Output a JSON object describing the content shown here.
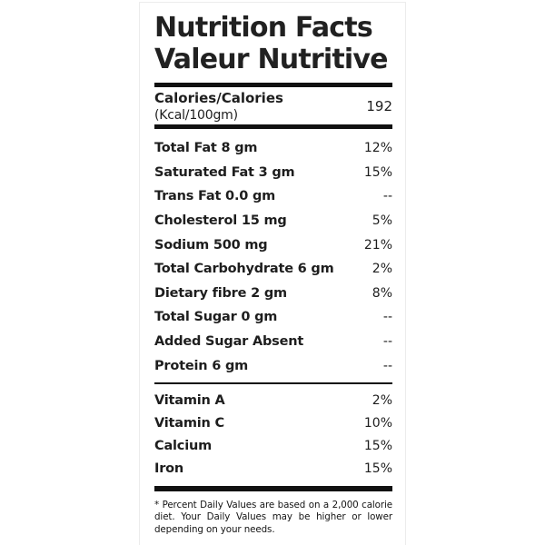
{
  "header": {
    "title_line1": "Nutrition Facts",
    "title_line2": "Valeur Nutritive"
  },
  "calories": {
    "label": "Calories/Calories",
    "unit": "(Kcal/100gm)",
    "value": "192"
  },
  "daily_value_rows": [
    {
      "label": "Total Fat 8 gm",
      "value": "12%"
    },
    {
      "label": "Saturated Fat 3 gm",
      "value": "15%"
    },
    {
      "label": "Trans Fat 0.0 gm",
      "value": "--"
    },
    {
      "label": "Cholesterol 15 mg",
      "value": "5%"
    },
    {
      "label": "Sodium 500 mg",
      "value": "21%"
    },
    {
      "label": "Total Carbohydrate 6 gm",
      "value": "2%"
    },
    {
      "label": "Dietary fibre 2 gm",
      "value": "8%"
    },
    {
      "label": "Total Sugar 0 gm",
      "value": "--"
    },
    {
      "label": "Added Sugar Absent",
      "value": "--"
    },
    {
      "label": "Protein 6 gm",
      "value": "--"
    }
  ],
  "vitamin_rows": [
    {
      "label": "Vitamin A",
      "value": "2%"
    },
    {
      "label": "Vitamin C",
      "value": "10%"
    },
    {
      "label": "Calcium",
      "value": "15%"
    },
    {
      "label": "Iron",
      "value": "15%"
    }
  ],
  "footnote": "* Percent Daily Values are based on a 2,000 calorie diet. Your Daily Values may be higher or lower depending on your needs.",
  "colors": {
    "text": "#1e1e1e",
    "bar": "#111111",
    "card_border": "#ececec",
    "background": "#ffffff"
  }
}
